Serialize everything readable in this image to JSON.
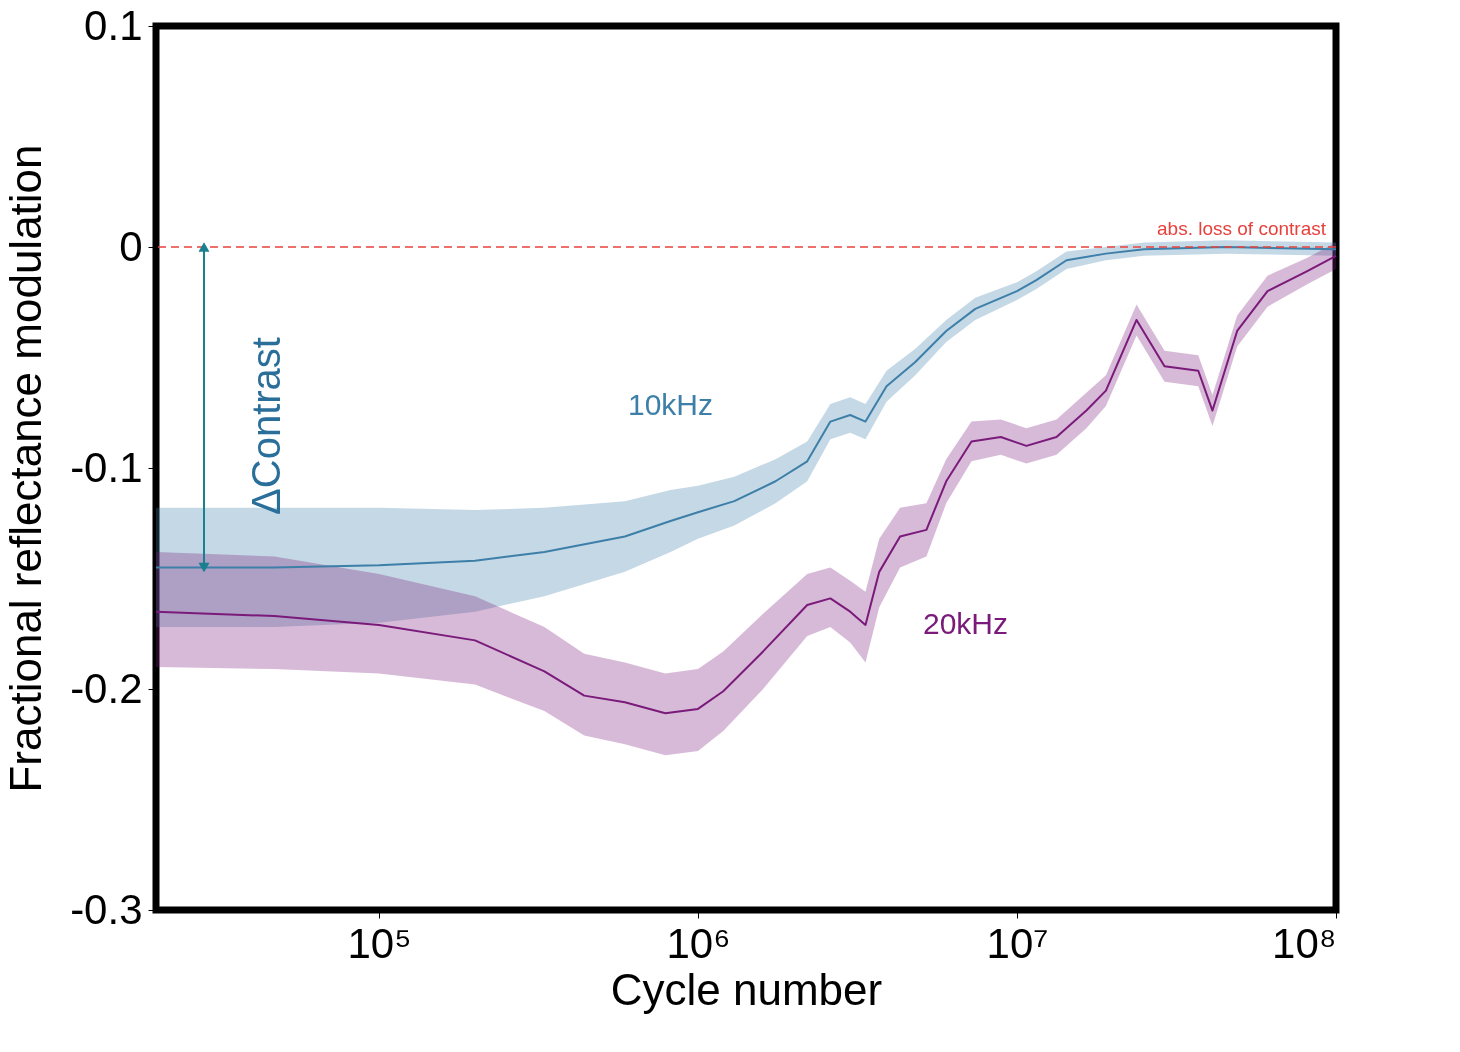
{
  "chart_data": {
    "type": "line",
    "xlabel": "Cycle number",
    "ylabel": "Fractional reflectance modulation",
    "log": "x",
    "grid": false,
    "legend": false,
    "marker": "none",
    "line_style": "solid",
    "xlim": [
      20000,
      100000000
    ],
    "xticks": [
      {
        "value": 100000,
        "label": "10⁵"
      },
      {
        "value": 1000000,
        "label": "10⁶"
      },
      {
        "value": 10000000,
        "label": "10⁷"
      },
      {
        "value": 100000000,
        "label": "10⁸"
      }
    ],
    "ylim": [
      -0.3,
      0.1
    ],
    "yticks": [
      -0.3,
      -0.2,
      -0.1,
      0,
      0.1
    ],
    "series": [
      {
        "name": "10kHz",
        "color": "#3d7fa8",
        "x": [
          20000,
          47000,
          100000,
          200000,
          330000,
          590000,
          820000,
          1000000,
          1300000,
          1750000,
          2200000,
          2600000,
          3000000,
          3350000,
          3900000,
          4800000,
          6000000,
          7400000,
          10000000,
          11500000,
          14300000,
          19000000,
          25000000,
          45000000,
          100000000
        ],
        "values": [
          -0.145,
          -0.145,
          -0.144,
          -0.142,
          -0.138,
          -0.131,
          -0.124,
          -0.12,
          -0.115,
          -0.106,
          -0.097,
          -0.079,
          -0.076,
          -0.079,
          -0.063,
          -0.052,
          -0.038,
          -0.028,
          -0.02,
          -0.015,
          -0.006,
          -0.003,
          -0.001,
          0,
          -0.001
        ],
        "lower": [
          -0.172,
          -0.172,
          -0.17,
          -0.165,
          -0.158,
          -0.147,
          -0.138,
          -0.132,
          -0.126,
          -0.116,
          -0.106,
          -0.087,
          -0.084,
          -0.087,
          -0.07,
          -0.058,
          -0.043,
          -0.033,
          -0.024,
          -0.019,
          -0.01,
          -0.006,
          -0.004,
          -0.003,
          -0.004
        ],
        "upper": [
          -0.118,
          -0.118,
          -0.118,
          -0.119,
          -0.118,
          -0.115,
          -0.11,
          -0.108,
          -0.104,
          -0.096,
          -0.088,
          -0.071,
          -0.068,
          -0.071,
          -0.056,
          -0.046,
          -0.033,
          -0.023,
          -0.016,
          -0.011,
          -0.002,
          0,
          0.002,
          0.003,
          0.002
        ]
      },
      {
        "name": "20kHz",
        "color": "#7a1a7a",
        "x": [
          20000,
          47000,
          100000,
          200000,
          330000,
          440000,
          590000,
          790000,
          1000000,
          1200000,
          1600000,
          2200000,
          2600000,
          3000000,
          3350000,
          3700000,
          4300000,
          5200000,
          6000000,
          7200000,
          8900000,
          10700000,
          13300000,
          16500000,
          19000000,
          23700000,
          29000000,
          37000000,
          41000000,
          49000000,
          61000000,
          81000000,
          100000000
        ],
        "values": [
          -0.165,
          -0.167,
          -0.171,
          -0.178,
          -0.192,
          -0.203,
          -0.206,
          -0.211,
          -0.209,
          -0.201,
          -0.183,
          -0.162,
          -0.159,
          -0.165,
          -0.171,
          -0.147,
          -0.131,
          -0.128,
          -0.106,
          -0.088,
          -0.086,
          -0.09,
          -0.086,
          -0.074,
          -0.065,
          -0.033,
          -0.054,
          -0.056,
          -0.074,
          -0.038,
          -0.02,
          -0.011,
          -0.004
        ],
        "lower": [
          -0.19,
          -0.191,
          -0.193,
          -0.198,
          -0.21,
          -0.221,
          -0.225,
          -0.23,
          -0.228,
          -0.219,
          -0.2,
          -0.176,
          -0.172,
          -0.179,
          -0.188,
          -0.163,
          -0.145,
          -0.14,
          -0.116,
          -0.097,
          -0.094,
          -0.098,
          -0.094,
          -0.082,
          -0.072,
          -0.04,
          -0.061,
          -0.063,
          -0.081,
          -0.045,
          -0.027,
          -0.017,
          -0.01
        ],
        "upper": [
          -0.138,
          -0.14,
          -0.148,
          -0.158,
          -0.172,
          -0.184,
          -0.188,
          -0.193,
          -0.191,
          -0.183,
          -0.166,
          -0.148,
          -0.145,
          -0.151,
          -0.156,
          -0.132,
          -0.118,
          -0.116,
          -0.096,
          -0.079,
          -0.078,
          -0.082,
          -0.078,
          -0.066,
          -0.058,
          -0.026,
          -0.047,
          -0.049,
          -0.067,
          -0.031,
          -0.013,
          -0.005,
          0.002
        ]
      }
    ],
    "ref_lines": [
      {
        "axis": "y",
        "value": 0,
        "label": "abs. loss of contrast",
        "color": "#e8413c",
        "line_style": "dashed"
      }
    ],
    "annotations": [
      "ΔContrast"
    ]
  }
}
